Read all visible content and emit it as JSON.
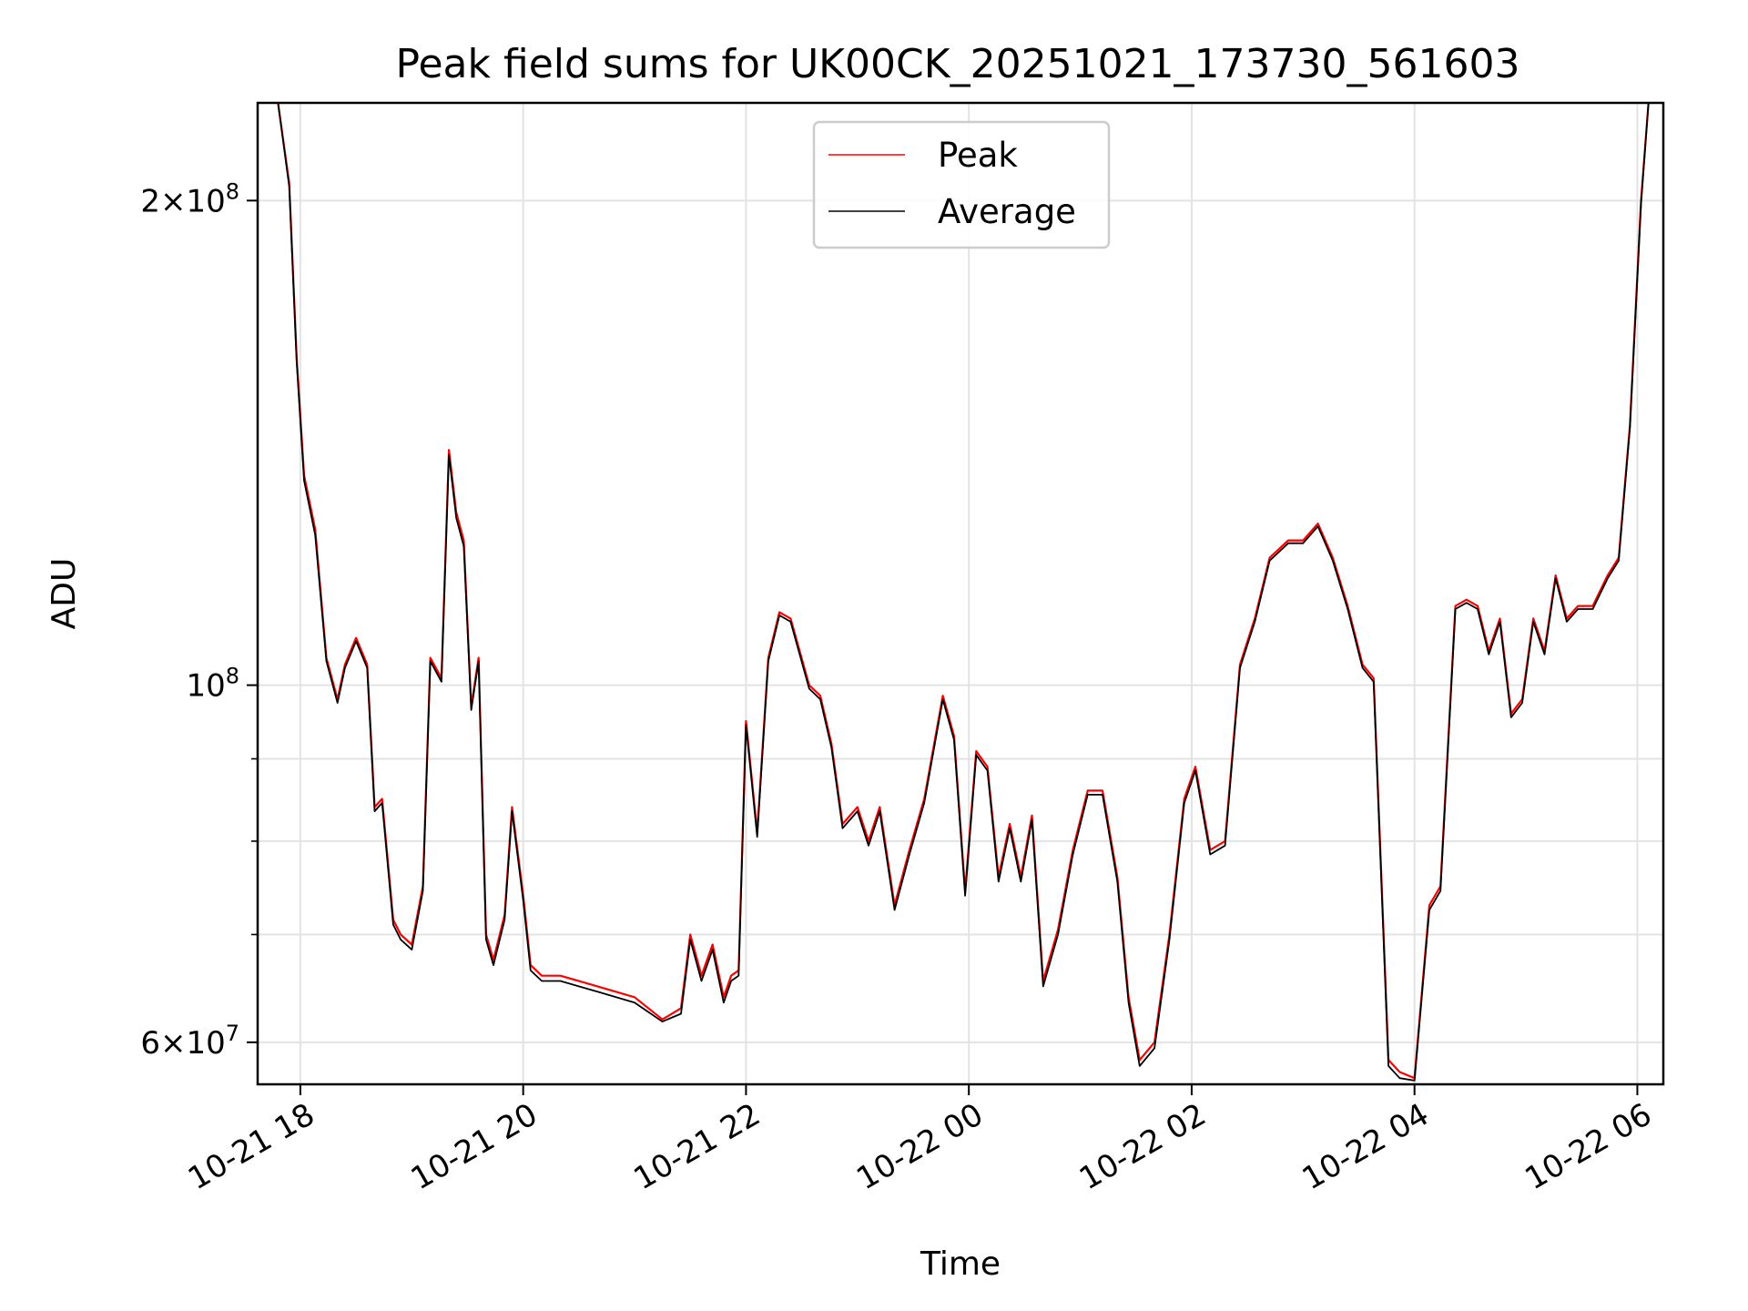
{
  "chart_data": {
    "type": "line",
    "title": "Peak field sums for UK00CK_20251021_173730_561603",
    "xlabel": "Time",
    "ylabel": "ADU",
    "y_scale": "log",
    "ylim": [
      56500000,
      230000000
    ],
    "xlim": [
      "2025-10-21 17:37",
      "2025-10-22 06:14"
    ],
    "x_ticks": [
      {
        "value": "2025-10-21 18:00",
        "label": "10-21 18"
      },
      {
        "value": "2025-10-21 20:00",
        "label": "10-21 20"
      },
      {
        "value": "2025-10-21 22:00",
        "label": "10-21 22"
      },
      {
        "value": "2025-10-22 00:00",
        "label": "10-22 00"
      },
      {
        "value": "2025-10-22 02:00",
        "label": "10-22 02"
      },
      {
        "value": "2025-10-22 04:00",
        "label": "10-22 04"
      },
      {
        "value": "2025-10-22 06:00",
        "label": "10-22 06"
      }
    ],
    "y_ticks": [
      {
        "value": 200000000,
        "base": "2",
        "exp": "8"
      },
      {
        "value": 100000000,
        "base": "10",
        "exp": "8"
      },
      {
        "value": 60000000,
        "base": "6",
        "exp": "7"
      }
    ],
    "y_minor_ticks": [
      70000000,
      80000000,
      90000000
    ],
    "grid": true,
    "legend_position": "upper center",
    "series": [
      {
        "name": "Peak",
        "color": "#ff0000",
        "x": [
          "2025-10-21 17:48",
          "2025-10-21 17:54",
          "2025-10-21 17:58",
          "2025-10-21 18:02",
          "2025-10-21 18:08",
          "2025-10-21 18:14",
          "2025-10-21 18:20",
          "2025-10-21 18:24",
          "2025-10-21 18:30",
          "2025-10-21 18:36",
          "2025-10-21 18:40",
          "2025-10-21 18:44",
          "2025-10-21 18:50",
          "2025-10-21 18:54",
          "2025-10-21 19:00",
          "2025-10-21 19:06",
          "2025-10-21 19:10",
          "2025-10-21 19:16",
          "2025-10-21 19:20",
          "2025-10-21 19:24",
          "2025-10-21 19:28",
          "2025-10-21 19:32",
          "2025-10-21 19:36",
          "2025-10-21 19:40",
          "2025-10-21 19:44",
          "2025-10-21 19:50",
          "2025-10-21 19:54",
          "2025-10-21 20:00",
          "2025-10-21 20:04",
          "2025-10-21 20:10",
          "2025-10-21 20:20",
          "2025-10-21 20:40",
          "2025-10-21 21:00",
          "2025-10-21 21:15",
          "2025-10-21 21:25",
          "2025-10-21 21:30",
          "2025-10-21 21:36",
          "2025-10-21 21:42",
          "2025-10-21 21:48",
          "2025-10-21 21:52",
          "2025-10-21 21:56",
          "2025-10-21 22:00",
          "2025-10-21 22:06",
          "2025-10-21 22:12",
          "2025-10-21 22:18",
          "2025-10-21 22:24",
          "2025-10-21 22:34",
          "2025-10-21 22:40",
          "2025-10-21 22:46",
          "2025-10-21 22:52",
          "2025-10-21 23:00",
          "2025-10-21 23:06",
          "2025-10-21 23:12",
          "2025-10-21 23:20",
          "2025-10-21 23:28",
          "2025-10-21 23:36",
          "2025-10-21 23:46",
          "2025-10-21 23:52",
          "2025-10-21 23:58",
          "2025-10-22 00:04",
          "2025-10-22 00:10",
          "2025-10-22 00:16",
          "2025-10-22 00:22",
          "2025-10-22 00:28",
          "2025-10-22 00:34",
          "2025-10-22 00:40",
          "2025-10-22 00:48",
          "2025-10-22 00:56",
          "2025-10-22 01:04",
          "2025-10-22 01:12",
          "2025-10-22 01:20",
          "2025-10-22 01:26",
          "2025-10-22 01:32",
          "2025-10-22 01:40",
          "2025-10-22 01:48",
          "2025-10-22 01:56",
          "2025-10-22 02:02",
          "2025-10-22 02:10",
          "2025-10-22 02:18",
          "2025-10-22 02:26",
          "2025-10-22 02:34",
          "2025-10-22 02:42",
          "2025-10-22 02:52",
          "2025-10-22 03:00",
          "2025-10-22 03:08",
          "2025-10-22 03:16",
          "2025-10-22 03:24",
          "2025-10-22 03:32",
          "2025-10-22 03:38",
          "2025-10-22 03:46",
          "2025-10-22 03:52",
          "2025-10-22 04:00",
          "2025-10-22 04:08",
          "2025-10-22 04:14",
          "2025-10-22 04:22",
          "2025-10-22 04:28",
          "2025-10-22 04:34",
          "2025-10-22 04:40",
          "2025-10-22 04:46",
          "2025-10-22 04:52",
          "2025-10-22 04:58",
          "2025-10-22 05:04",
          "2025-10-22 05:10",
          "2025-10-22 05:16",
          "2025-10-22 05:22",
          "2025-10-22 05:28",
          "2025-10-22 05:36",
          "2025-10-22 05:44",
          "2025-10-22 05:50",
          "2025-10-22 05:56",
          "2025-10-22 06:02",
          "2025-10-22 06:06"
        ],
        "y": [
          230000000,
          205000000,
          160000000,
          135000000,
          125000000,
          104000000,
          98000000,
          103000000,
          107000000,
          103000000,
          84000000,
          85000000,
          71500000,
          70000000,
          69000000,
          75000000,
          104000000,
          101000000,
          140000000,
          128000000,
          123000000,
          97000000,
          104000000,
          70000000,
          67500000,
          72000000,
          84000000,
          74000000,
          67000000,
          66000000,
          66000000,
          65000000,
          64000000,
          62000000,
          63000000,
          70000000,
          66000000,
          69000000,
          64000000,
          66000000,
          66500000,
          95000000,
          81000000,
          104000000,
          111000000,
          110000000,
          100000000,
          98500000,
          92000000,
          82000000,
          84000000,
          80000000,
          84000000,
          73000000,
          79000000,
          85000000,
          98500000,
          93000000,
          74500000,
          91000000,
          89000000,
          76000000,
          82000000,
          76000000,
          83000000,
          65500000,
          70500000,
          79000000,
          86000000,
          86000000,
          76000000,
          64000000,
          58500000,
          60000000,
          70000000,
          85000000,
          89000000,
          79000000,
          80000000,
          103000000,
          110000000,
          120000000,
          123000000,
          123000000,
          126000000,
          120000000,
          112000000,
          103000000,
          101000000,
          58500000,
          57500000,
          57000000,
          73000000,
          75000000,
          112000000,
          113000000,
          112000000,
          105000000,
          110000000,
          96000000,
          98000000,
          110000000,
          105000000,
          117000000,
          110000000,
          112000000,
          112000000,
          117000000,
          120000000,
          145000000,
          200000000,
          230000000
        ]
      },
      {
        "name": "Average",
        "color": "#000000",
        "x": [
          "2025-10-21 17:48",
          "2025-10-21 17:54",
          "2025-10-21 17:58",
          "2025-10-21 18:02",
          "2025-10-21 18:08",
          "2025-10-21 18:14",
          "2025-10-21 18:20",
          "2025-10-21 18:24",
          "2025-10-21 18:30",
          "2025-10-21 18:36",
          "2025-10-21 18:40",
          "2025-10-21 18:44",
          "2025-10-21 18:50",
          "2025-10-21 18:54",
          "2025-10-21 19:00",
          "2025-10-21 19:06",
          "2025-10-21 19:10",
          "2025-10-21 19:16",
          "2025-10-21 19:20",
          "2025-10-21 19:24",
          "2025-10-21 19:28",
          "2025-10-21 19:32",
          "2025-10-21 19:36",
          "2025-10-21 19:40",
          "2025-10-21 19:44",
          "2025-10-21 19:50",
          "2025-10-21 19:54",
          "2025-10-21 20:00",
          "2025-10-21 20:04",
          "2025-10-21 20:10",
          "2025-10-21 20:20",
          "2025-10-21 20:40",
          "2025-10-21 21:00",
          "2025-10-21 21:15",
          "2025-10-21 21:25",
          "2025-10-21 21:30",
          "2025-10-21 21:36",
          "2025-10-21 21:42",
          "2025-10-21 21:48",
          "2025-10-21 21:52",
          "2025-10-21 21:56",
          "2025-10-21 22:00",
          "2025-10-21 22:06",
          "2025-10-21 22:12",
          "2025-10-21 22:18",
          "2025-10-21 22:24",
          "2025-10-21 22:34",
          "2025-10-21 22:40",
          "2025-10-21 22:46",
          "2025-10-21 22:52",
          "2025-10-21 23:00",
          "2025-10-21 23:06",
          "2025-10-21 23:12",
          "2025-10-21 23:20",
          "2025-10-21 23:28",
          "2025-10-21 23:36",
          "2025-10-21 23:46",
          "2025-10-21 23:52",
          "2025-10-21 23:58",
          "2025-10-22 00:04",
          "2025-10-22 00:10",
          "2025-10-22 00:16",
          "2025-10-22 00:22",
          "2025-10-22 00:28",
          "2025-10-22 00:34",
          "2025-10-22 00:40",
          "2025-10-22 00:48",
          "2025-10-22 00:56",
          "2025-10-22 01:04",
          "2025-10-22 01:12",
          "2025-10-22 01:20",
          "2025-10-22 01:26",
          "2025-10-22 01:32",
          "2025-10-22 01:40",
          "2025-10-22 01:48",
          "2025-10-22 01:56",
          "2025-10-22 02:02",
          "2025-10-22 02:10",
          "2025-10-22 02:18",
          "2025-10-22 02:26",
          "2025-10-22 02:34",
          "2025-10-22 02:42",
          "2025-10-22 02:52",
          "2025-10-22 03:00",
          "2025-10-22 03:08",
          "2025-10-22 03:16",
          "2025-10-22 03:24",
          "2025-10-22 03:32",
          "2025-10-22 03:38",
          "2025-10-22 03:46",
          "2025-10-22 03:52",
          "2025-10-22 04:00",
          "2025-10-22 04:08",
          "2025-10-22 04:14",
          "2025-10-22 04:22",
          "2025-10-22 04:28",
          "2025-10-22 04:34",
          "2025-10-22 04:40",
          "2025-10-22 04:46",
          "2025-10-22 04:52",
          "2025-10-22 04:58",
          "2025-10-22 05:04",
          "2025-10-22 05:10",
          "2025-10-22 05:16",
          "2025-10-22 05:22",
          "2025-10-22 05:28",
          "2025-10-22 05:36",
          "2025-10-22 05:44",
          "2025-10-22 05:50",
          "2025-10-22 05:56",
          "2025-10-22 06:02",
          "2025-10-22 06:06"
        ],
        "y": [
          230000000,
          204000000,
          159000000,
          134000000,
          124000000,
          103500000,
          97500000,
          102500000,
          106500000,
          102500000,
          83500000,
          84500000,
          71000000,
          69500000,
          68500000,
          74500000,
          103500000,
          100500000,
          139000000,
          127000000,
          122000000,
          96500000,
          103500000,
          69500000,
          67000000,
          71500000,
          83500000,
          73500000,
          66500000,
          65500000,
          65500000,
          64500000,
          63500000,
          61800000,
          62500000,
          69500000,
          65500000,
          68500000,
          63500000,
          65500000,
          66000000,
          94500000,
          80500000,
          103500000,
          110500000,
          109500000,
          99500000,
          98000000,
          91500000,
          81500000,
          83500000,
          79500000,
          83500000,
          72500000,
          78500000,
          84500000,
          98000000,
          92500000,
          74000000,
          90500000,
          88500000,
          75500000,
          81500000,
          75500000,
          82500000,
          65000000,
          70000000,
          78500000,
          85500000,
          85500000,
          75500000,
          63500000,
          58000000,
          59500000,
          69500000,
          84500000,
          88500000,
          78500000,
          79500000,
          102500000,
          109500000,
          119500000,
          122500000,
          122500000,
          125500000,
          119500000,
          111500000,
          102500000,
          100500000,
          58000000,
          57000000,
          56800000,
          72500000,
          74500000,
          111500000,
          112500000,
          111500000,
          104500000,
          109500000,
          95500000,
          97500000,
          109500000,
          104500000,
          116500000,
          109500000,
          111500000,
          111500000,
          116500000,
          119500000,
          144500000,
          199000000,
          230000000
        ]
      }
    ]
  }
}
